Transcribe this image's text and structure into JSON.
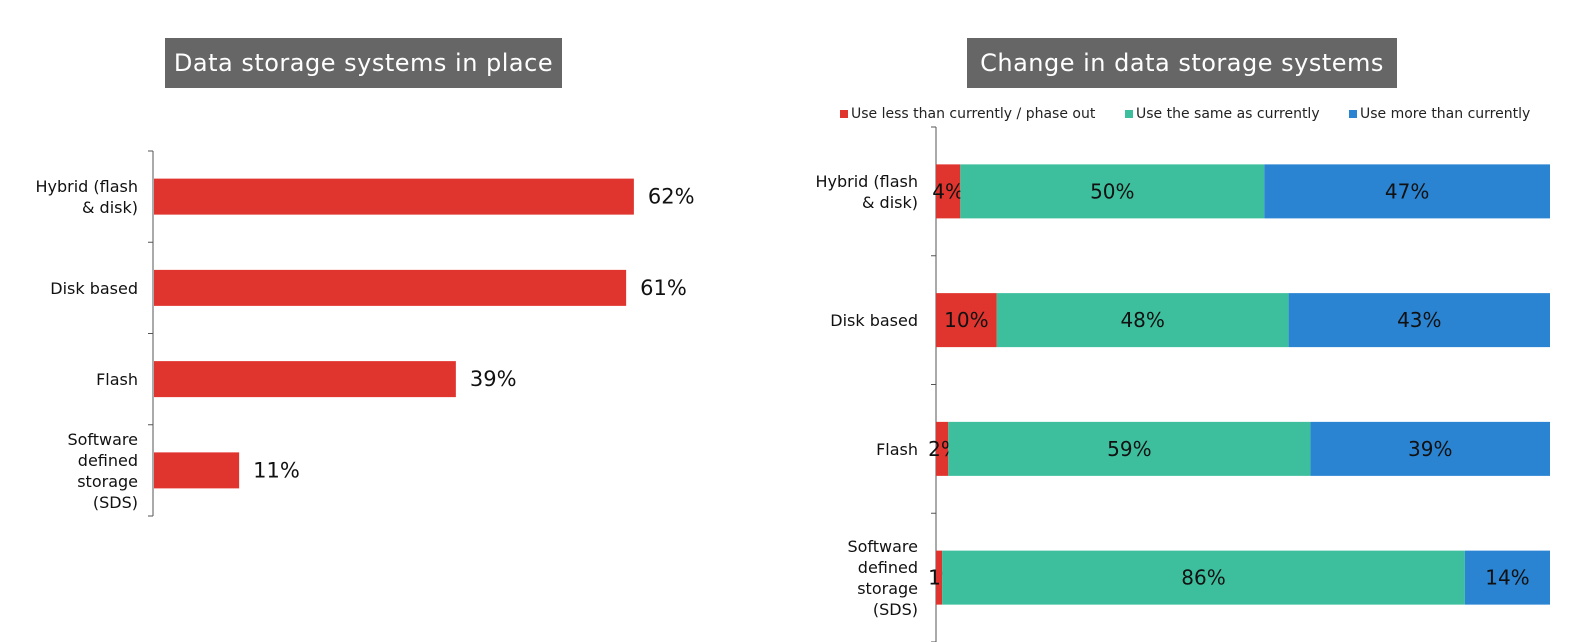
{
  "chart_data": [
    {
      "type": "bar",
      "orientation": "horizontal",
      "title": "Data storage systems in place",
      "categories": [
        [
          "Hybrid (flash",
          "& disk)"
        ],
        [
          "Disk based"
        ],
        [
          "Flash"
        ],
        [
          "Software",
          "defined",
          "storage",
          "(SDS)"
        ]
      ],
      "values": [
        62,
        61,
        39,
        11
      ],
      "value_labels": [
        "62%",
        "61%",
        "39%",
        "11%"
      ],
      "xlim": [
        0,
        100
      ],
      "grid": false,
      "color": "#e0352f"
    },
    {
      "type": "bar",
      "orientation": "horizontal",
      "stacked": true,
      "title": "Change in data storage systems",
      "legend_position": "top",
      "categories": [
        [
          "Hybrid (flash",
          "& disk)"
        ],
        [
          "Disk based"
        ],
        [
          "Flash"
        ],
        [
          "Software",
          "defined",
          "storage",
          "(SDS)"
        ]
      ],
      "series": [
        {
          "name": "Use less than currently / phase out",
          "color": "#e0352f",
          "values": [
            4,
            10,
            2,
            1
          ],
          "labels": [
            "4%",
            "10%",
            "2%",
            "1%"
          ]
        },
        {
          "name": "Use the same as currently",
          "color": "#3dbf9e",
          "values": [
            50,
            48,
            59,
            86
          ],
          "labels": [
            "50%",
            "48%",
            "59%",
            "86%"
          ]
        },
        {
          "name": "Use more than currently",
          "color": "#2a84d2",
          "values": [
            47,
            43,
            39,
            14
          ],
          "labels": [
            "47%",
            "43%",
            "39%",
            "14%"
          ]
        }
      ],
      "xlim": [
        0,
        100
      ],
      "grid": false
    }
  ]
}
